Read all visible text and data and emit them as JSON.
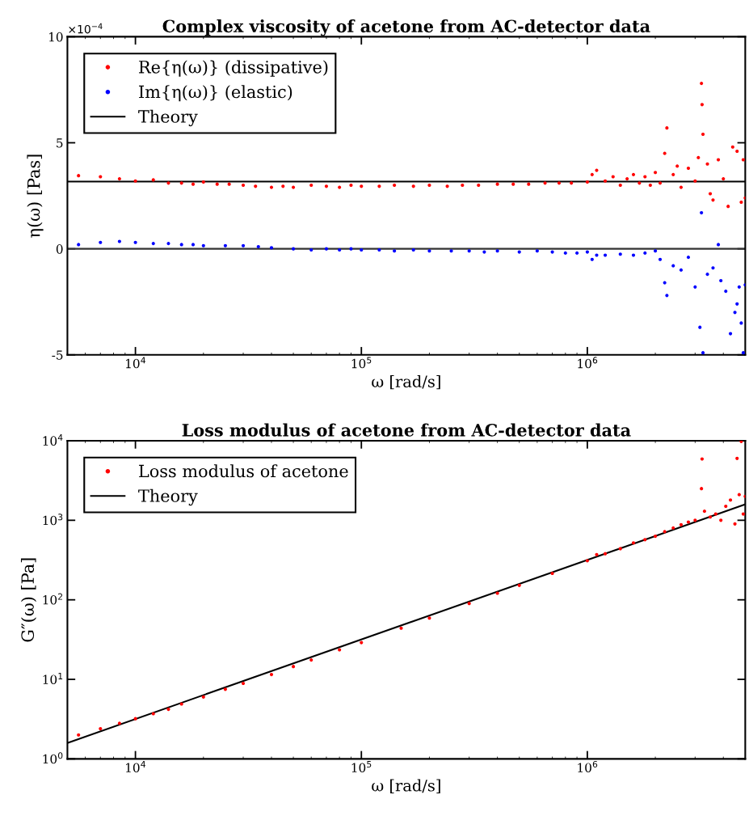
{
  "chart_data": [
    {
      "type": "scatter",
      "title": "Complex viscosity of acetone from AC-detector data",
      "xlabel": "ω [rad/s]",
      "ylabel": "η(ω) [Pas]",
      "log": "x",
      "grid": false,
      "legend": "top left",
      "marker": "circle",
      "xlim": [
        5000,
        5000000
      ],
      "xticks": [
        {
          "value": 10000,
          "label": "10$^{4}$"
        },
        {
          "value": 100000,
          "label": "10$^{5}$"
        },
        {
          "value": 1000000,
          "label": "10$^{6}$"
        }
      ],
      "ylim": [
        -5,
        10
      ],
      "yticks": [
        -5,
        0,
        5,
        10
      ],
      "annotations": [
        "×10$^{−4}$"
      ],
      "series": [
        {
          "name": "Re{η(ω)} (dissipative)",
          "color": "#ff0000",
          "x": [
            5600,
            7000,
            8500,
            10000,
            12000,
            14000,
            16000,
            18000,
            20000,
            23000,
            26000,
            30000,
            34000,
            40000,
            45000,
            50000,
            60000,
            70000,
            80000,
            90000,
            100000,
            120000,
            140000,
            170000,
            200000,
            240000,
            280000,
            330000,
            400000,
            470000,
            550000,
            650000,
            750000,
            850000,
            1000000,
            1050000,
            1100000,
            1200000,
            1300000,
            1400000,
            1500000,
            1600000,
            1700000,
            1800000,
            1900000,
            2000000,
            2100000,
            2200000,
            2250000,
            2400000,
            2500000,
            2600000,
            2800000,
            3000000,
            3100000,
            3200000,
            3220000,
            3250000,
            3400000,
            3500000,
            3600000,
            3800000,
            4000000,
            4200000,
            4400000,
            4600000,
            4800000,
            4900000,
            5000000
          ],
          "values": [
            3.45,
            3.4,
            3.3,
            3.2,
            3.25,
            3.1,
            3.1,
            3.05,
            3.15,
            3.05,
            3.05,
            3.0,
            2.95,
            2.9,
            2.95,
            2.9,
            3.0,
            2.95,
            2.9,
            3.0,
            2.95,
            2.95,
            3.0,
            2.95,
            3.0,
            2.95,
            3.0,
            3.0,
            3.05,
            3.05,
            3.05,
            3.1,
            3.1,
            3.1,
            3.15,
            3.5,
            3.7,
            3.2,
            3.4,
            3.0,
            3.3,
            3.5,
            3.1,
            3.4,
            3.0,
            3.6,
            3.1,
            4.5,
            5.7,
            3.5,
            3.9,
            2.9,
            3.8,
            3.2,
            4.3,
            7.8,
            6.8,
            5.4,
            4.0,
            2.6,
            2.3,
            4.2,
            3.3,
            2.0,
            4.8,
            4.6,
            2.2,
            4.2,
            2.4
          ]
        },
        {
          "name": "Im{η(ω)} (elastic)",
          "color": "#0000ff",
          "x": [
            5600,
            7000,
            8500,
            10000,
            12000,
            14000,
            16000,
            18000,
            20000,
            25000,
            30000,
            35000,
            40000,
            50000,
            60000,
            70000,
            80000,
            90000,
            100000,
            120000,
            140000,
            170000,
            200000,
            250000,
            300000,
            350000,
            400000,
            500000,
            600000,
            700000,
            800000,
            900000,
            1000000,
            1050000,
            1100000,
            1200000,
            1400000,
            1600000,
            1800000,
            2000000,
            2100000,
            2200000,
            2250000,
            2400000,
            2600000,
            2800000,
            3000000,
            3150000,
            3200000,
            3250000,
            3400000,
            3600000,
            3800000,
            3900000,
            4100000,
            4300000,
            4500000,
            4600000,
            4700000,
            4800000,
            4900000,
            5000000
          ],
          "values": [
            0.2,
            0.3,
            0.35,
            0.3,
            0.25,
            0.25,
            0.2,
            0.2,
            0.15,
            0.15,
            0.15,
            0.1,
            0.05,
            0.0,
            -0.05,
            0.0,
            -0.05,
            0.0,
            -0.05,
            -0.05,
            -0.1,
            -0.05,
            -0.1,
            -0.1,
            -0.1,
            -0.15,
            -0.1,
            -0.15,
            -0.1,
            -0.15,
            -0.2,
            -0.2,
            -0.15,
            -0.5,
            -0.3,
            -0.3,
            -0.25,
            -0.3,
            -0.2,
            -0.1,
            -0.5,
            -1.6,
            -2.2,
            -0.8,
            -1.0,
            -0.4,
            -1.8,
            -3.7,
            1.7,
            -4.9,
            -1.2,
            -0.9,
            0.2,
            -1.5,
            -2.0,
            -4.0,
            -3.0,
            -2.6,
            -1.8,
            -3.5,
            -4.9,
            -1.7
          ]
        },
        {
          "name": "Theory",
          "type": "line",
          "marker": "none",
          "color": "#000000",
          "x": [
            5000,
            5000000
          ],
          "values": [
            3.17,
            3.17
          ]
        },
        {
          "type": "line",
          "marker": "none",
          "color": "#333333",
          "x": [
            5000,
            5000000
          ],
          "values": [
            0,
            0
          ]
        }
      ]
    },
    {
      "type": "scatter",
      "title": "Loss modulus of acetone from AC-detector data",
      "xlabel": "ω [rad/s]",
      "ylabel": "G″(ω) [Pa]",
      "log": "xy",
      "grid": false,
      "legend": "top left",
      "marker": "circle",
      "xlim": [
        5000,
        5000000
      ],
      "xticks": [
        {
          "value": 10000,
          "label": "10$^{4}$"
        },
        {
          "value": 100000,
          "label": "10$^{5}$"
        },
        {
          "value": 1000000,
          "label": "10$^{6}$"
        }
      ],
      "ylim": [
        1,
        10000
      ],
      "yticks": [
        {
          "value": 1,
          "label": "10$^{0}$"
        },
        {
          "value": 10,
          "label": "10$^{1}$"
        },
        {
          "value": 100,
          "label": "10$^{2}$"
        },
        {
          "value": 1000,
          "label": "10$^{3}$"
        },
        {
          "value": 10000,
          "label": "10$^{4}$"
        }
      ],
      "series": [
        {
          "name": "Loss modulus of acetone",
          "color": "#ff0000",
          "x": [
            5600,
            7000,
            8500,
            10000,
            12000,
            14000,
            16000,
            20000,
            25000,
            30000,
            40000,
            50000,
            60000,
            80000,
            100000,
            150000,
            200000,
            300000,
            400000,
            500000,
            700000,
            1000000,
            1100000,
            1200000,
            1400000,
            1600000,
            1800000,
            2000000,
            2200000,
            2400000,
            2600000,
            2800000,
            3000000,
            3200000,
            3220000,
            3300000,
            3500000,
            3700000,
            3900000,
            4100000,
            4300000,
            4500000,
            4600000,
            4700000,
            4800000,
            4900000,
            5000000
          ],
          "values": [
            2.0,
            2.4,
            2.8,
            3.2,
            3.7,
            4.2,
            4.9,
            6.0,
            7.5,
            8.9,
            11.5,
            14.5,
            17.5,
            23.5,
            29,
            44,
            59,
            90,
            121,
            152,
            215,
            310,
            370,
            380,
            440,
            520,
            570,
            630,
            720,
            800,
            880,
            950,
            1000,
            2500,
            5900,
            1300,
            1100,
            1200,
            1000,
            1500,
            1800,
            900,
            6000,
            2100,
            9800,
            1200,
            2000
          ]
        },
        {
          "name": "Theory",
          "type": "line",
          "marker": "none",
          "color": "#000000",
          "x": [
            5000,
            5000000
          ],
          "values": [
            1.585,
            1585
          ]
        }
      ]
    }
  ]
}
